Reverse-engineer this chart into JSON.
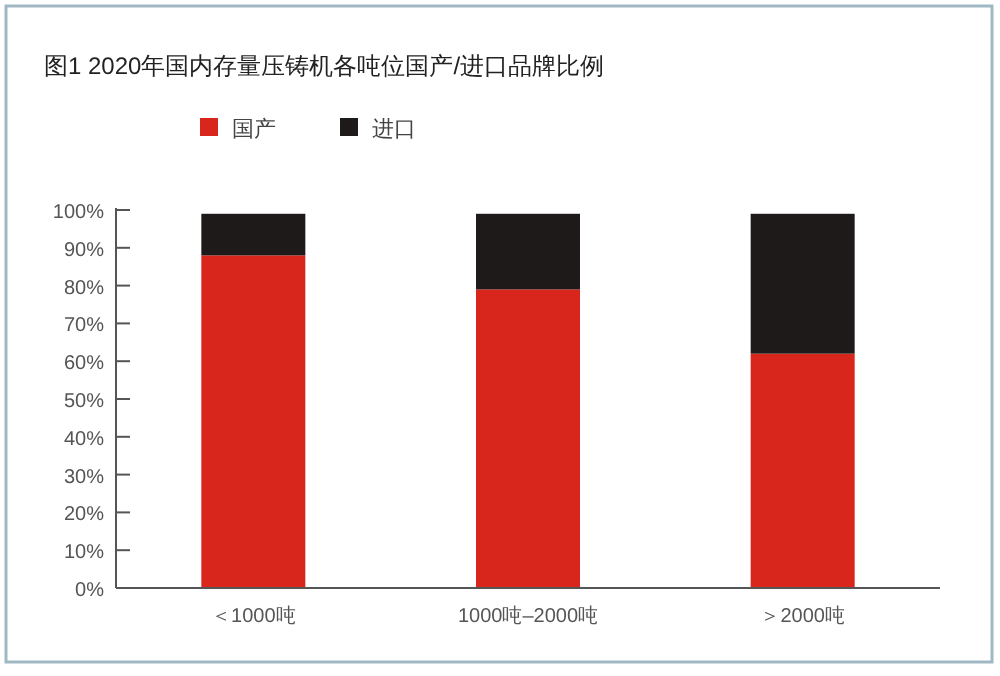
{
  "chart_data": {
    "type": "bar",
    "title": "图1 2020年国内存量压铸机各吨位国产/进口品牌比例",
    "categories": [
      "＜1000吨",
      "1000吨–2000吨",
      "＞2000吨"
    ],
    "stacked": true,
    "legend": "top",
    "series": [
      {
        "name": "国产",
        "color": "#d9261c",
        "values": [
          88,
          79,
          62
        ]
      },
      {
        "name": "进口",
        "color": "#1e1a19",
        "values": [
          11,
          20,
          37
        ]
      }
    ],
    "ylim": [
      0,
      100
    ],
    "yticks": [
      {
        "value": 0,
        "label": "0%"
      },
      {
        "value": 10,
        "label": "10%"
      },
      {
        "value": 20,
        "label": "20%"
      },
      {
        "value": 30,
        "label": "30%"
      },
      {
        "value": 40,
        "label": "40%"
      },
      {
        "value": 50,
        "label": "50%"
      },
      {
        "value": 60,
        "label": "60%"
      },
      {
        "value": 70,
        "label": "70%"
      },
      {
        "value": 80,
        "label": "80%"
      },
      {
        "value": 90,
        "label": "90%"
      },
      {
        "value": 100,
        "label": "100%"
      }
    ]
  }
}
